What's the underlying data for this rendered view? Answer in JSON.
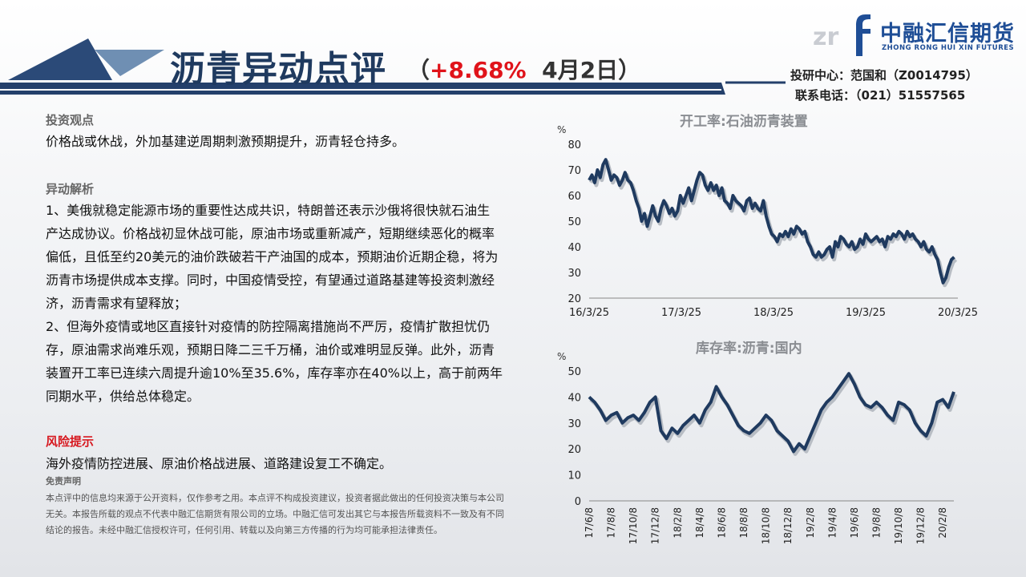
{
  "header": {
    "title": "沥青异动点评",
    "subtitle_open": "（",
    "change": "+8.68%",
    "date": "4月2日",
    "subtitle_close": "）"
  },
  "logo": {
    "mark": "zrhf",
    "name_cn": "中融汇信期货",
    "name_en": "ZHONG RONG HUI XIN FUTURES"
  },
  "contact": {
    "line1": "投研中心：范国和（Z0014795）",
    "line2": "联系电话：（021）51557565"
  },
  "content": {
    "view_heading": "投资观点",
    "view_text": "价格战或休战，外加基建逆周期刺激预期提升，沥青轻仓持多。",
    "analysis_heading": "异动解析",
    "analysis_p1": "1、美俄就稳定能源市场的重要性达成共识，特朗普还表示沙俄将很快就石油生产达成协议。价格战初显休战可能，原油市场或重新减产，短期继续恶化的概率偏低，且低至约20美元的油价跌破若干产油国的成本，预期油价近期企稳，将为沥青市场提供成本支撑。同时，中国疫情受控，有望通过道路基建等投资刺激经济，沥青需求有望释放；",
    "analysis_p2": "2、但海外疫情或地区直接针对疫情的防控隔离措施尚不严厉，疫情扩散担忧仍存，原油需求尚难乐观，预期日降二三千万桶，油价或难明显反弹。此外，沥青装置开工率已连续六周提升逾10%至35.6%，库存率亦在40%以上，高于前两年同期水平，供给总体稳定。",
    "risk_heading": "风险提示",
    "risk_text": "海外疫情防控进展、原油价格战进展、道路建设复工不确定。",
    "disclaimer_heading": "免责声明",
    "disclaimer_text": "本点评中的信息均来源于公开资料，仅作参考之用。本点评不构成投资建议，投资者据此做出的任何投资决策与本公司无关。本报告所载的观点不代表中融汇信期货有限公司的立场。中融汇信可发出其它与本报告所载资料不一致及有不同结论的报告。未经中融汇信授权许可，任何引用、转载以及向第三方传播的行为均可能承担法律责任。"
  },
  "colors": {
    "title": "#1f3a5f",
    "accent_red": "#e0131a",
    "line": "#1f3a5f",
    "header_band": "#24406b"
  },
  "chart_data": [
    {
      "type": "line",
      "title": "开工率:石油沥青装置",
      "ylabel": "%",
      "ylim": [
        20,
        80
      ],
      "yticks": [
        20,
        30,
        40,
        50,
        60,
        70,
        80
      ],
      "xticks": [
        "16/3/25",
        "17/3/25",
        "18/3/25",
        "19/3/25",
        "20/3/25"
      ],
      "xrange": [
        0,
        4
      ],
      "series": [
        {
          "x": [
            0,
            0.03,
            0.06,
            0.09,
            0.12,
            0.15,
            0.18,
            0.21,
            0.24,
            0.27,
            0.3,
            0.33,
            0.36,
            0.39,
            0.42,
            0.45,
            0.48,
            0.51,
            0.54,
            0.57,
            0.6,
            0.63,
            0.66,
            0.69,
            0.72,
            0.75,
            0.78,
            0.81,
            0.84,
            0.87,
            0.9,
            0.93,
            0.96,
            0.99,
            1.02,
            1.05,
            1.08,
            1.11,
            1.14,
            1.17,
            1.2,
            1.23,
            1.26,
            1.29,
            1.32,
            1.35,
            1.38,
            1.41,
            1.44,
            1.47,
            1.5,
            1.53,
            1.56,
            1.59,
            1.62,
            1.65,
            1.68,
            1.71,
            1.74,
            1.77,
            1.8,
            1.83,
            1.86,
            1.89,
            1.92,
            1.95,
            1.98,
            2.01,
            2.04,
            2.07,
            2.1,
            2.13,
            2.16,
            2.19,
            2.22,
            2.25,
            2.28,
            2.31,
            2.34,
            2.37,
            2.4,
            2.43,
            2.46,
            2.49,
            2.52,
            2.55,
            2.58,
            2.61,
            2.64,
            2.67,
            2.7,
            2.73,
            2.76,
            2.79,
            2.82,
            2.85,
            2.88,
            2.91,
            2.94,
            2.97,
            3.0,
            3.03,
            3.06,
            3.09,
            3.12,
            3.15,
            3.18,
            3.21,
            3.24,
            3.27,
            3.3,
            3.33,
            3.36,
            3.39,
            3.42,
            3.45,
            3.48,
            3.51,
            3.54,
            3.57,
            3.6,
            3.63,
            3.66,
            3.69,
            3.72,
            3.75,
            3.78,
            3.81,
            3.84,
            3.87,
            3.9,
            3.93,
            3.96
          ],
          "y": [
            66,
            68,
            65,
            70,
            67,
            72,
            74,
            70,
            66,
            68,
            67,
            64,
            66,
            69,
            66,
            65,
            62,
            58,
            55,
            50,
            53,
            48,
            52,
            56,
            52,
            50,
            55,
            58,
            56,
            53,
            55,
            52,
            54,
            60,
            57,
            60,
            63,
            58,
            62,
            66,
            69,
            68,
            64,
            62,
            65,
            62,
            64,
            60,
            63,
            58,
            57,
            55,
            60,
            58,
            57,
            56,
            54,
            58,
            59,
            55,
            57,
            55,
            54,
            58,
            52,
            48,
            45,
            44,
            42,
            45,
            44,
            46,
            44,
            47,
            45,
            48,
            47,
            45,
            46,
            42,
            40,
            37,
            36,
            38,
            36,
            37,
            39,
            40,
            36,
            42,
            40,
            44,
            43,
            41,
            40,
            42,
            39,
            40,
            43,
            41,
            45,
            43,
            42,
            43,
            44,
            42,
            43,
            40,
            44,
            43,
            45,
            44,
            46,
            45,
            43,
            46,
            44,
            45,
            43,
            42,
            40,
            42,
            39,
            38,
            40,
            37,
            35,
            30,
            26,
            28,
            32,
            35,
            36
          ]
        }
      ]
    },
    {
      "type": "line",
      "title": "库存率:沥青:国内",
      "ylabel": "%",
      "ylim": [
        0,
        50
      ],
      "yticks": [
        0,
        10,
        20,
        30,
        40,
        50
      ],
      "xticks": [
        "17/6/8",
        "17/8/8",
        "17/10/8",
        "17/12/8",
        "18/2/8",
        "18/4/8",
        "18/6/8",
        "18/8/8",
        "18/10/8",
        "18/12/8",
        "19/2/8",
        "19/4/8",
        "19/6/8",
        "19/8/8",
        "19/10/8",
        "19/12/8",
        "20/2/8"
      ],
      "xrange": [
        0,
        16.5
      ],
      "series": [
        {
          "x": [
            0,
            0.25,
            0.5,
            0.75,
            1,
            1.25,
            1.5,
            1.75,
            2,
            2.25,
            2.5,
            2.75,
            3,
            3.25,
            3.5,
            3.75,
            4,
            4.25,
            4.5,
            4.75,
            5,
            5.25,
            5.5,
            5.75,
            6,
            6.25,
            6.5,
            6.75,
            7,
            7.25,
            7.5,
            7.75,
            8,
            8.25,
            8.5,
            8.75,
            9,
            9.25,
            9.5,
            9.75,
            10,
            10.25,
            10.5,
            10.75,
            11,
            11.25,
            11.5,
            11.75,
            12,
            12.25,
            12.5,
            12.75,
            13,
            13.25,
            13.5,
            13.75,
            14,
            14.25,
            14.5,
            14.75,
            15,
            15.25,
            15.5,
            15.75,
            16,
            16.25,
            16.5
          ],
          "y": [
            40,
            38,
            35,
            31,
            33,
            34,
            30,
            32,
            33,
            31,
            34,
            38,
            40,
            27,
            24,
            28,
            26,
            29,
            31,
            33,
            30,
            35,
            38,
            44,
            40,
            37,
            33,
            29,
            27,
            26,
            28,
            30,
            33,
            31,
            27,
            25,
            23,
            19,
            22,
            20,
            25,
            30,
            35,
            38,
            40,
            43,
            46,
            49,
            45,
            40,
            37,
            36,
            38,
            36,
            33,
            31,
            38,
            37,
            35,
            30,
            27,
            25,
            30,
            38,
            39,
            36,
            42
          ]
        }
      ]
    }
  ]
}
